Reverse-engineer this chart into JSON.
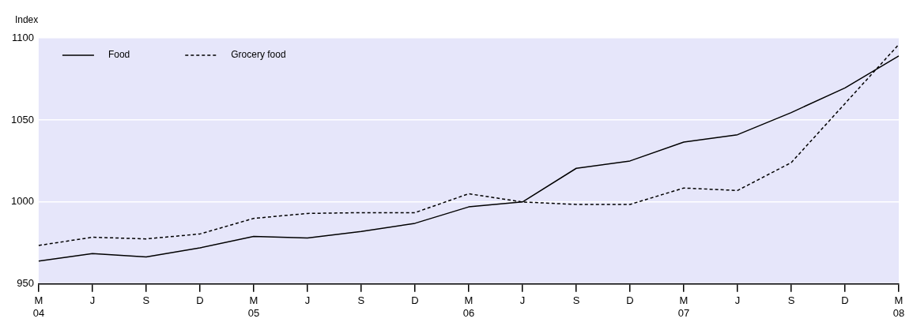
{
  "chart_data": {
    "type": "line",
    "ylabel": "Index",
    "categories": [
      "M\n04",
      "J",
      "S",
      "D",
      "M\n05",
      "J",
      "S",
      "D",
      "M\n06",
      "J",
      "S",
      "D",
      "M\n07",
      "J",
      "S",
      "D",
      "M\n08"
    ],
    "series": [
      {
        "name": "Food",
        "color": "#000000",
        "line_style": "solid",
        "values": [
          964,
          968.5,
          966.5,
          972,
          979,
          978,
          982,
          987,
          997,
          1000,
          1020.5,
          1025,
          1036.5,
          1041,
          1054.5,
          1069.5,
          1089
        ]
      },
      {
        "name": "Grocery food",
        "color": "#000000",
        "line_style": "dashed",
        "values": [
          973.5,
          978.5,
          977.5,
          980.5,
          990,
          993,
          993.5,
          993.5,
          1005,
          1000,
          998.5,
          998.5,
          1008.5,
          1007,
          1024,
          1060,
          1096
        ]
      }
    ],
    "ylim": [
      950,
      1100
    ],
    "yticks": [
      950,
      1000,
      1050,
      1100
    ],
    "grid": "y",
    "legend": "top left",
    "marker": "none"
  }
}
